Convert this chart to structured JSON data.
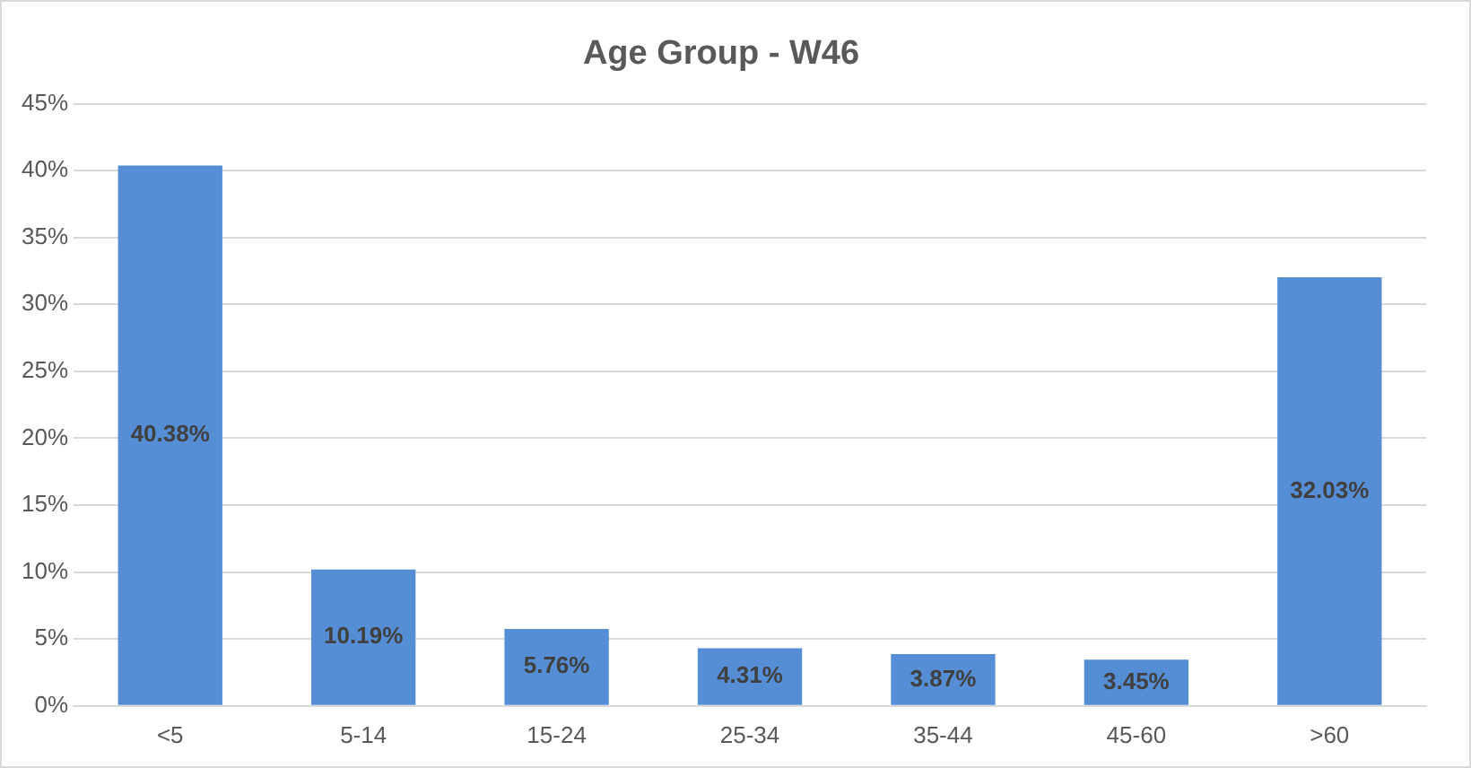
{
  "chart_data": {
    "type": "bar",
    "title": "Age Group - W46",
    "categories": [
      "<5",
      "5-14",
      "15-24",
      "25-34",
      "35-44",
      "45-60",
      ">60"
    ],
    "values": [
      40.38,
      10.19,
      5.76,
      4.31,
      3.87,
      3.45,
      32.03
    ],
    "value_labels": [
      "40.38%",
      "10.19%",
      "5.76%",
      "4.31%",
      "3.87%",
      "3.45%",
      "32.03%"
    ],
    "color": "#558ed5",
    "ylim": [
      0,
      45
    ],
    "yticks": [
      {
        "value": 0,
        "label": "0%"
      },
      {
        "value": 5,
        "label": "5%"
      },
      {
        "value": 10,
        "label": "10%"
      },
      {
        "value": 15,
        "label": "15%"
      },
      {
        "value": 20,
        "label": "20%"
      },
      {
        "value": 25,
        "label": "25%"
      },
      {
        "value": 30,
        "label": "30%"
      },
      {
        "value": 35,
        "label": "35%"
      },
      {
        "value": 40,
        "label": "40%"
      },
      {
        "value": 45,
        "label": "45%"
      }
    ],
    "grid": "y",
    "legend": false
  }
}
